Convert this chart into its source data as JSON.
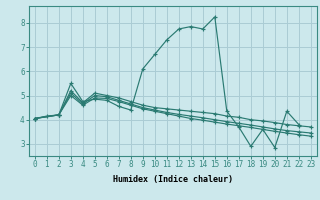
{
  "xlabel": "Humidex (Indice chaleur)",
  "bg_color": "#cce8ec",
  "grid_color": "#aaccd4",
  "line_color": "#2a7a72",
  "xlim": [
    -0.5,
    23.5
  ],
  "ylim": [
    2.5,
    8.7
  ],
  "xticks": [
    0,
    1,
    2,
    3,
    4,
    5,
    6,
    7,
    8,
    9,
    10,
    11,
    12,
    13,
    14,
    15,
    16,
    17,
    18,
    19,
    20,
    21,
    22,
    23
  ],
  "yticks": [
    3,
    4,
    5,
    6,
    7,
    8
  ],
  "lines": [
    {
      "x": [
        0,
        1,
        2,
        3,
        4,
        5,
        6,
        7,
        8,
        9,
        10,
        11,
        12,
        13,
        14,
        15,
        16,
        17,
        18,
        19,
        20,
        21,
        22,
        23
      ],
      "y": [
        4.05,
        4.15,
        4.2,
        5.5,
        4.75,
        4.85,
        4.8,
        4.55,
        4.4,
        6.1,
        6.7,
        7.3,
        7.75,
        7.85,
        7.75,
        8.25,
        4.35,
        3.7,
        2.9,
        3.6,
        2.85,
        4.35,
        3.8,
        null
      ]
    },
    {
      "x": [
        0,
        2,
        3,
        4,
        5,
        6,
        7,
        8,
        9,
        10,
        11,
        12,
        13,
        14,
        15,
        16,
        17,
        18,
        19,
        20,
        21,
        22,
        23
      ],
      "y": [
        4.05,
        4.2,
        5.2,
        4.7,
        5.1,
        5.0,
        4.9,
        4.75,
        4.6,
        4.5,
        4.45,
        4.4,
        4.35,
        4.3,
        4.25,
        4.15,
        4.1,
        4.0,
        3.95,
        3.88,
        3.8,
        3.75,
        3.7
      ]
    },
    {
      "x": [
        0,
        2,
        3,
        4,
        5,
        6,
        7,
        8,
        9,
        10,
        11,
        12,
        13,
        14,
        15,
        16,
        17,
        18,
        19,
        20,
        21,
        22,
        23
      ],
      "y": [
        4.05,
        4.2,
        5.1,
        4.65,
        5.0,
        4.95,
        4.8,
        4.65,
        4.5,
        4.4,
        4.3,
        4.22,
        4.15,
        4.08,
        4.0,
        3.92,
        3.85,
        3.78,
        3.7,
        3.62,
        3.55,
        3.5,
        3.45
      ]
    },
    {
      "x": [
        0,
        2,
        3,
        4,
        5,
        6,
        7,
        8,
        9,
        10,
        11,
        12,
        13,
        14,
        15,
        16,
        17,
        18,
        19,
        20,
        21,
        22,
        23
      ],
      "y": [
        4.05,
        4.2,
        5.0,
        4.6,
        4.9,
        4.88,
        4.75,
        4.6,
        4.45,
        4.35,
        4.25,
        4.15,
        4.05,
        3.98,
        3.9,
        3.82,
        3.75,
        3.68,
        3.6,
        3.52,
        3.45,
        3.38,
        3.32
      ]
    }
  ]
}
